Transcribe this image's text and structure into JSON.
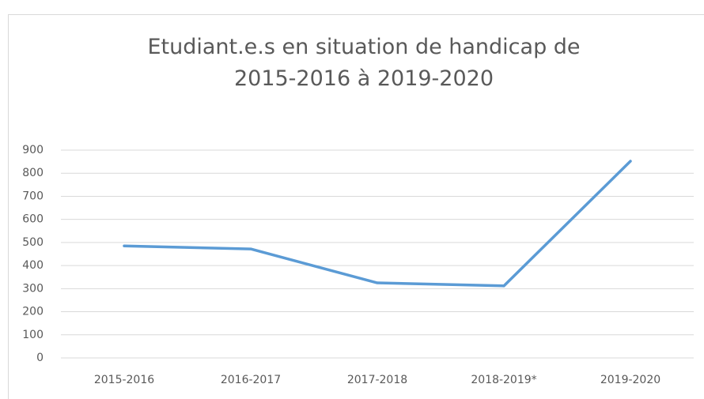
{
  "chart_data": {
    "type": "line",
    "title": "Etudiant.e.s en situation de handicap de 2015-2016 à 2019-2020",
    "categories": [
      "2015-2016",
      "2016-2017",
      "2017-2018",
      "2018-2019*",
      "2019-2020"
    ],
    "series": [
      {
        "color": "#5b9bd5",
        "values": [
          485,
          472,
          325,
          312,
          852
        ]
      }
    ],
    "ylim": [
      0,
      900
    ],
    "yticks": [
      0,
      100,
      200,
      300,
      400,
      500,
      600,
      700,
      800,
      900
    ],
    "grid": true
  }
}
